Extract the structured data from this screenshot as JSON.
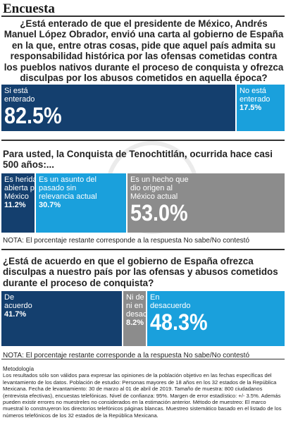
{
  "title": "Encuesta",
  "colors": {
    "dark_navy": "#143f6e",
    "light_blue": "#1aa0dc",
    "gray": "#8c8c8c",
    "white": "#ffffff"
  },
  "chart_data": [
    {
      "type": "bar",
      "question": "¿Está enterado de que el presidente de México, Andrés Manuel López Obrador, envió una carta al gobierno de España en la que, entre otras cosas, pide que aquel país admita su responsabilidad histórica por las ofensas cometidas contra los pueblos nativos durante el proceso de conquista y ofrezca disculpas por los abusos cometidos en aquella época?",
      "categories": [
        "Si está enterado",
        "No está enterado"
      ],
      "values": [
        82.5,
        17.5
      ],
      "value_labels": [
        "82.5%",
        "17.5%"
      ],
      "note": ""
    },
    {
      "type": "bar",
      "question": "Para usted, la Conquista de Tenochtitlán, ocurrida hace casi 500 años:...",
      "categories": [
        "Es herida abierta para México",
        "Es un asunto del pasado sin relevancia actual",
        "Es un hecho que dio origen al México actual"
      ],
      "values": [
        11.2,
        30.7,
        53.0
      ],
      "value_labels": [
        "11.2%",
        "30.7%",
        "53.0%"
      ],
      "note": "NOTA: El porcentaje restante corresponde a la respuesta No sabe/No contestó"
    },
    {
      "type": "bar",
      "question": "¿Está de acuerdo en que el gobierno de España ofrezca disculpas a nuestro país por las ofensas y abusos cometidos durante el proceso de conquista?",
      "categories": [
        "De acuerdo",
        "Ni de acuerdo ni en desacuerdo",
        "En desacuerdo"
      ],
      "values": [
        41.7,
        8.2,
        48.3
      ],
      "value_labels": [
        "41.7%",
        "8.2%",
        "48.3%"
      ],
      "note": "NOTA: El porcentaje restante corresponde a la respuesta No sabe/No contestó"
    }
  ],
  "methodology": {
    "heading": "Metodología",
    "text": "Los resultados sólo son válidos para expresar las opiniones de la población objetivo en las fechas específicas del levantamiento de los datos. Población de estudio: Personas mayores de 18 años en los 32 estados de la República Mexicana. Fecha de levantamiento: 30 de marzo al 01 de abril de 2019. Tamaño de muestra: 800 ciudadanos (entrevista efectivas), encuestas telefónicas. Nivel de confianza: 95%. Margen de error estadístico: +/- 3.5%. Además pueden existir errores no muestreles no considerados en la estimación anterior. Método de muestreo: El marco muestral lo construyeron los directorios telefónicos páginas blancas. Muestreo sistemático basado en el listado de los números telefónicos de los 32 estados de la República Mexicana."
  }
}
